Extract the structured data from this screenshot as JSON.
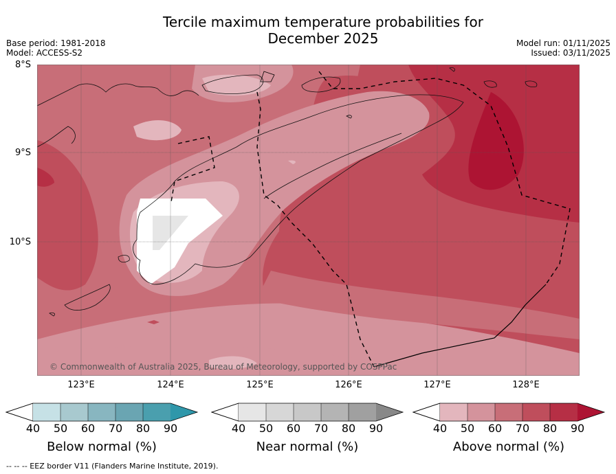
{
  "title_line1": "Tercile maximum temperature probabilities for",
  "title_line2": "December 2025",
  "base_period": "Base period: 1981-2018",
  "model": "Model: ACCESS-S2",
  "model_run": "Model run: 01/11/2025",
  "issued": "Issued: 03/11/2025",
  "lat_labels": [
    "8°S",
    "9°S",
    "10°S"
  ],
  "lon_labels": [
    "123°E",
    "124°E",
    "125°E",
    "126°E",
    "127°E",
    "128°E"
  ],
  "copyright": "© Commonwealth of Australia 2025, Bureau of Meteorology, supported by COSPPac",
  "colorbars": {
    "below": {
      "title": "Below normal (%)",
      "ticks": [
        "40",
        "50",
        "60",
        "70",
        "80",
        "90"
      ],
      "colors": [
        "#c6e1e6",
        "#a8c9cf",
        "#88b6c0",
        "#6aa5b2",
        "#4a9fae",
        "#2f97aa"
      ]
    },
    "near": {
      "title": "Near normal (%)",
      "ticks": [
        "40",
        "50",
        "60",
        "70",
        "80",
        "90"
      ],
      "colors": [
        "#e6e6e6",
        "#d7d7d7",
        "#c8c8c8",
        "#b4b4b4",
        "#a0a0a0",
        "#888888"
      ]
    },
    "above": {
      "title": "Above normal (%)",
      "ticks": [
        "40",
        "50",
        "60",
        "70",
        "80",
        "90"
      ],
      "colors": [
        "#e3b6bd",
        "#d4939c",
        "#c86e78",
        "#bf4e5c",
        "#b62f45",
        "#ad1433"
      ]
    }
  },
  "footer": "-- -- -- EEZ border V11 (Flanders Marine Institute, 2019)."
}
